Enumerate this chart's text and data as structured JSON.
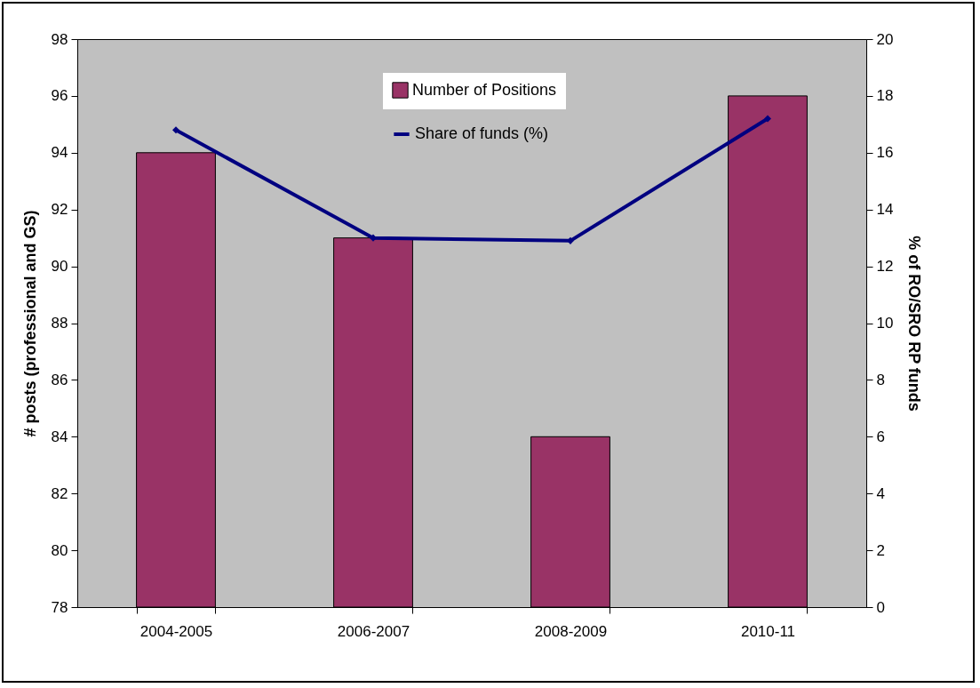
{
  "chart_data": {
    "type": "bar",
    "categories": [
      "2004-2005",
      "2006-2007",
      "2008-2009",
      "2010-11"
    ],
    "ylabel": "# posts (professional and GS)",
    "y2label": "% of RO/SRO RP funds",
    "series": [
      {
        "name": "Number of Positions",
        "color": "#993366",
        "values": [
          94,
          91,
          84,
          96
        ]
      },
      {
        "name": "Share of funds (%)",
        "type": "line",
        "axis": "y2",
        "color": "#000080",
        "marker": "diamond",
        "values": [
          16.8,
          13.0,
          12.9,
          17.2
        ]
      }
    ],
    "ylim": [
      78,
      98
    ],
    "yticks": [
      78,
      80,
      82,
      84,
      86,
      88,
      90,
      92,
      94,
      96,
      98
    ],
    "y2lim": [
      0,
      20
    ],
    "y2ticks": [
      0,
      2,
      4,
      6,
      8,
      10,
      12,
      14,
      16,
      18,
      20
    ],
    "grid": false,
    "legend": "top"
  }
}
